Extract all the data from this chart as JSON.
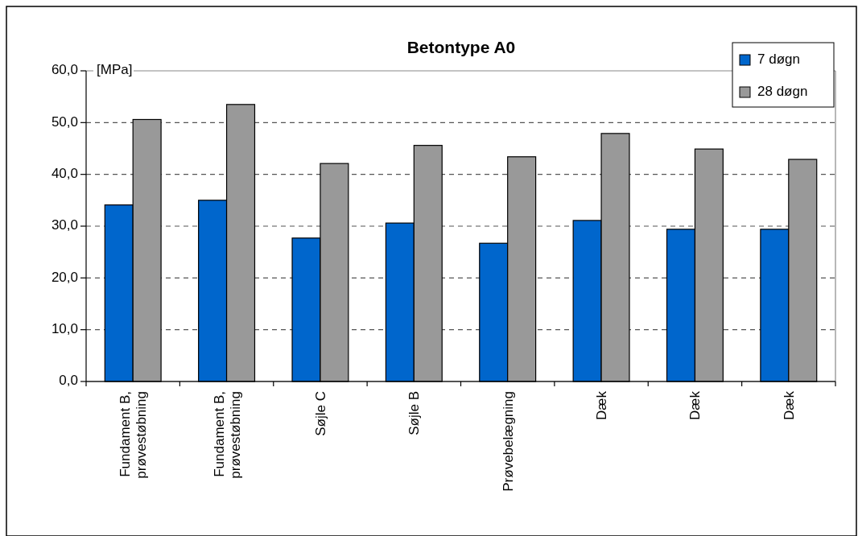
{
  "chart_data": {
    "type": "bar",
    "title": "Betontype A0",
    "ylabel": "[MPa]",
    "categories": [
      "Fundament B, prøvestøbning",
      "Fundament B, prøvestøbning",
      "Søjle C",
      "Søjle B",
      "Prøvebelægning",
      "Dæk",
      "Dæk",
      "Dæk"
    ],
    "series": [
      {
        "name": "7 døgn",
        "color": "#0066cc",
        "values": [
          34.1,
          35.0,
          27.7,
          30.6,
          26.7,
          31.1,
          29.4,
          29.4
        ]
      },
      {
        "name": "28 døgn",
        "color": "#999999",
        "values": [
          50.6,
          53.5,
          42.1,
          45.6,
          43.4,
          47.9,
          44.9,
          42.9
        ]
      }
    ],
    "ylim": [
      0,
      60
    ],
    "yticks": [
      {
        "value": 0,
        "label": "0,0"
      },
      {
        "value": 10,
        "label": "10,0"
      },
      {
        "value": 20,
        "label": "20,0"
      },
      {
        "value": 30,
        "label": "30,0"
      },
      {
        "value": 40,
        "label": "40,0"
      },
      {
        "value": 50,
        "label": "50,0"
      },
      {
        "value": 60,
        "label": "60,0"
      }
    ],
    "grid": "y",
    "legend": "top right"
  }
}
